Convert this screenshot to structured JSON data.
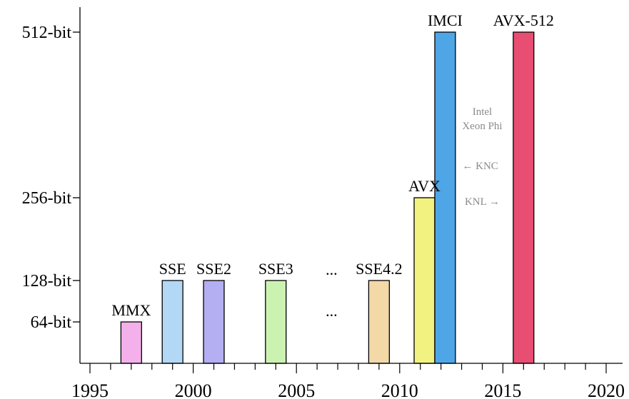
{
  "chart_data": {
    "type": "bar",
    "title": "",
    "xlabel": "",
    "ylabel": "",
    "x_ticks": [
      1995,
      2000,
      2005,
      2010,
      2015,
      2020
    ],
    "y_ticks": [
      {
        "value": 64,
        "label": "64-bit"
      },
      {
        "value": 128,
        "label": "128-bit"
      },
      {
        "value": 256,
        "label": "256-bit"
      },
      {
        "value": 512,
        "label": "512-bit"
      }
    ],
    "xlim": [
      1995,
      2020
    ],
    "ylim": [
      0,
      512
    ],
    "bars": [
      {
        "label": "MMX",
        "x_start": 1996.5,
        "x_end": 1997.5,
        "value": 64,
        "color": "#f4b0ea"
      },
      {
        "label": "SSE",
        "x_start": 1998.5,
        "x_end": 1999.5,
        "value": 128,
        "color": "#b2d8f6"
      },
      {
        "label": "SSE2",
        "x_start": 2000.5,
        "x_end": 2001.5,
        "value": 128,
        "color": "#b4aef2"
      },
      {
        "label": "SSE3",
        "x_start": 2003.5,
        "x_end": 2004.5,
        "value": 128,
        "color": "#ccf2b2"
      },
      {
        "label": "SSE4.2",
        "x_start": 2008.5,
        "x_end": 2009.5,
        "value": 128,
        "color": "#f3d9a8"
      },
      {
        "label": "AVX",
        "x_start": 2010.7,
        "x_end": 2011.7,
        "value": 256,
        "color": "#f2f280"
      },
      {
        "label": "IMCI",
        "x_start": 2011.7,
        "x_end": 2012.7,
        "value": 512,
        "color": "#4fa6e6"
      },
      {
        "label": "AVX-512",
        "x_start": 2015.5,
        "x_end": 2016.5,
        "value": 512,
        "color": "#e84d72"
      }
    ],
    "ellipsis": [
      {
        "text": "...",
        "x": 2006.7,
        "y": 128
      },
      {
        "text": "...",
        "x": 2006.7,
        "y": 64
      }
    ],
    "annotations": [
      {
        "text": "Intel",
        "x": 2014.0,
        "y": 384
      },
      {
        "text": "Xeon Phi",
        "x": 2014.0,
        "y": 362
      },
      {
        "text": "← KNC",
        "x": 2013.9,
        "y": 300
      },
      {
        "text": "KNL →",
        "x": 2014.0,
        "y": 245
      }
    ]
  }
}
